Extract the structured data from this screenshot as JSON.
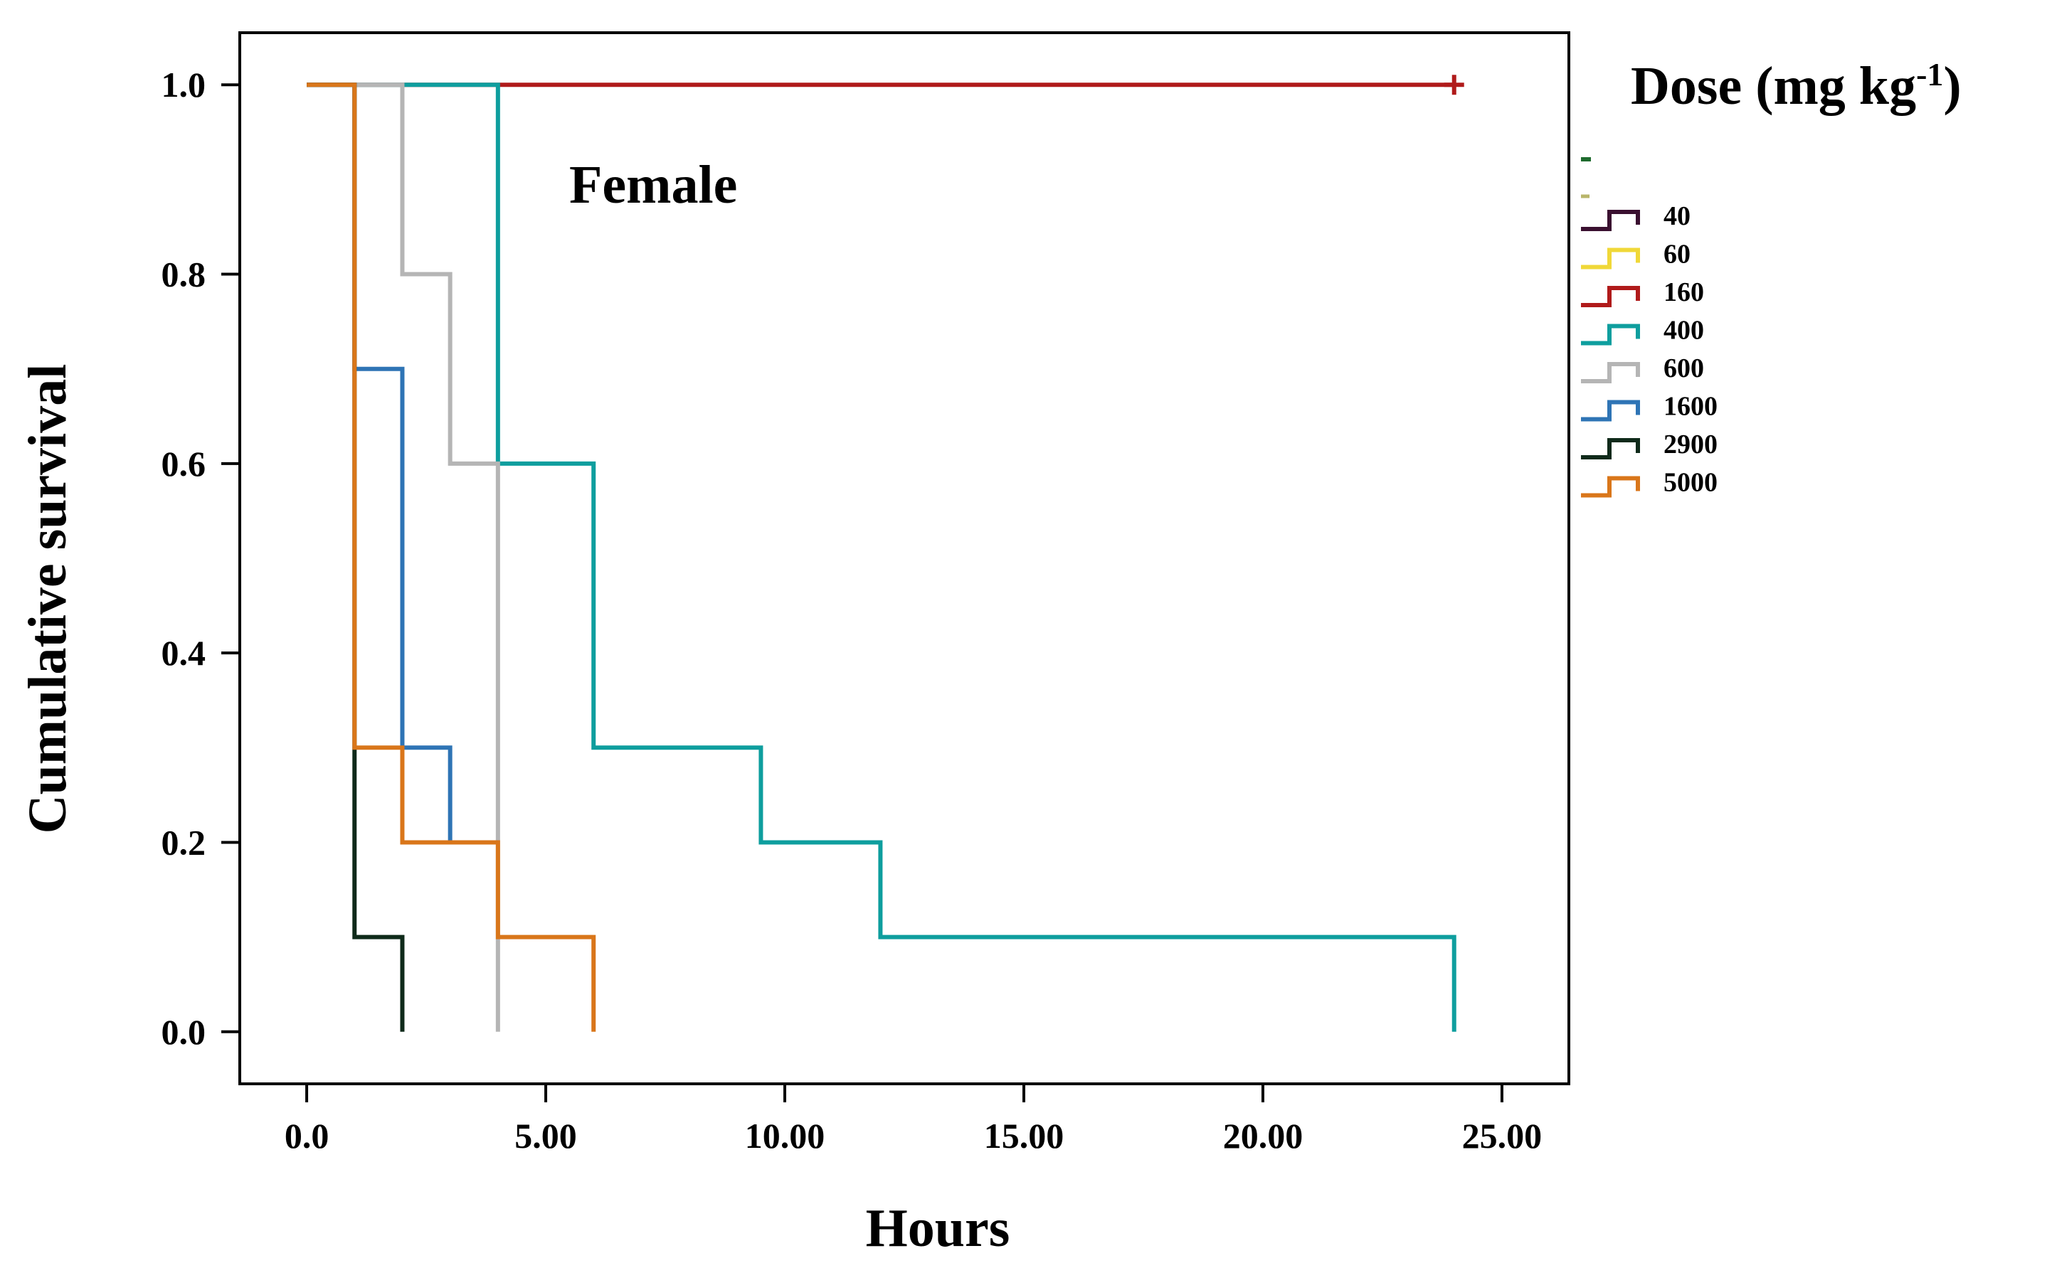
{
  "chart_data": {
    "type": "line",
    "subtype": "kaplan-meier step survival",
    "title": "",
    "annotation": "Female",
    "xlabel": "Hours",
    "ylabel": "Cumulative survival",
    "xlim": [
      -1.4,
      26.4
    ],
    "ylim": [
      -0.055,
      1.055
    ],
    "xticks": [
      0,
      5,
      10,
      15,
      20,
      25
    ],
    "xtick_labels": [
      "0.0",
      "5.00",
      "10.00",
      "15.00",
      "20.00",
      "25.00"
    ],
    "yticks": [
      0.0,
      0.2,
      0.4,
      0.6,
      0.8,
      1.0
    ],
    "ytick_labels": [
      "0.0",
      "0.2",
      "0.4",
      "0.6",
      "0.8",
      "1.0"
    ],
    "grid": false,
    "legend": {
      "title_main": "Dose (mg kg",
      "title_sup": "-1",
      "title_close": ")",
      "placement": "right"
    },
    "series": [
      {
        "name": "",
        "color": "#1e6b2e",
        "legend_only": true,
        "x": [],
        "y": []
      },
      {
        "name": "",
        "color": "#b8b56a",
        "legend_only": true,
        "x": [],
        "y": []
      },
      {
        "name": "40",
        "color": "#3a1030",
        "x": [],
        "y": []
      },
      {
        "name": "60",
        "color": "#f0d838",
        "x": [],
        "y": []
      },
      {
        "name": "160",
        "color": "#b01a1a",
        "x": [
          0,
          24
        ],
        "y": [
          1.0,
          1.0
        ],
        "censored_at": [
          24
        ]
      },
      {
        "name": "400",
        "color": "#0e9e9e",
        "x": [
          0,
          4,
          6,
          9.5,
          12,
          24
        ],
        "y": [
          1.0,
          0.6,
          0.3,
          0.2,
          0.1,
          0.0
        ]
      },
      {
        "name": "600",
        "color": "#b5b5b5",
        "x": [
          0,
          2,
          3,
          4
        ],
        "y": [
          1.0,
          0.8,
          0.6,
          0.0
        ]
      },
      {
        "name": "1600",
        "color": "#2e74b5",
        "x": [
          0,
          1,
          2,
          3
        ],
        "y": [
          1.0,
          0.7,
          0.3,
          0.2
        ]
      },
      {
        "name": "2900",
        "color": "#0f2a1a",
        "x": [
          0,
          1,
          2
        ],
        "y": [
          1.0,
          0.1,
          0.0
        ]
      },
      {
        "name": "5000",
        "color": "#d9761a",
        "x": [
          0,
          1,
          2,
          4,
          6
        ],
        "y": [
          1.0,
          0.3,
          0.2,
          0.1,
          0.0
        ]
      }
    ]
  }
}
